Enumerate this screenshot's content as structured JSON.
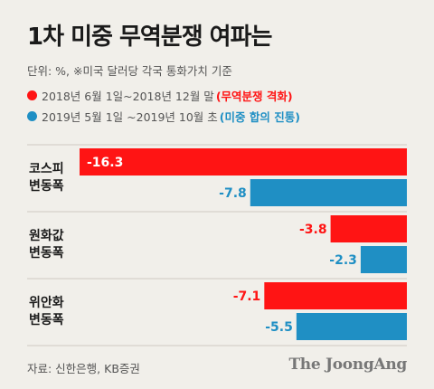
{
  "title": "1차 미중 무역분쟁 여파는",
  "unit": "단위: %, ※미국 달러당 각국 통화가치 기준",
  "legend": [
    {
      "period": "2018년 6월 1일~2018년 12월 말",
      "note": "(무역분쟁 격화)",
      "color": "#ff1414"
    },
    {
      "period": "2019년 5월 1일 ~2019년 10월 초",
      "note": "(미중 합의 진통)",
      "color": "#1f8fc4"
    }
  ],
  "source": "자료: 신한은행, KB증권",
  "logo": "The JoongAng",
  "chart_data": {
    "type": "bar",
    "orientation": "horizontal",
    "categories": [
      "코스피 변동폭",
      "원화값 변동폭",
      "위안화 변동폭"
    ],
    "series": [
      {
        "values": [
          -16.3,
          -3.8,
          -7.1
        ],
        "labels": [
          "-16.3",
          "-3.8",
          "-7.1"
        ],
        "color": "#ff1414"
      },
      {
        "values": [
          -7.8,
          -2.3,
          -5.5
        ],
        "labels": [
          "-7.8",
          "-2.3",
          "-5.5"
        ],
        "color": "#1f8fc4"
      }
    ],
    "xlim": [
      -16.3,
      0
    ]
  }
}
